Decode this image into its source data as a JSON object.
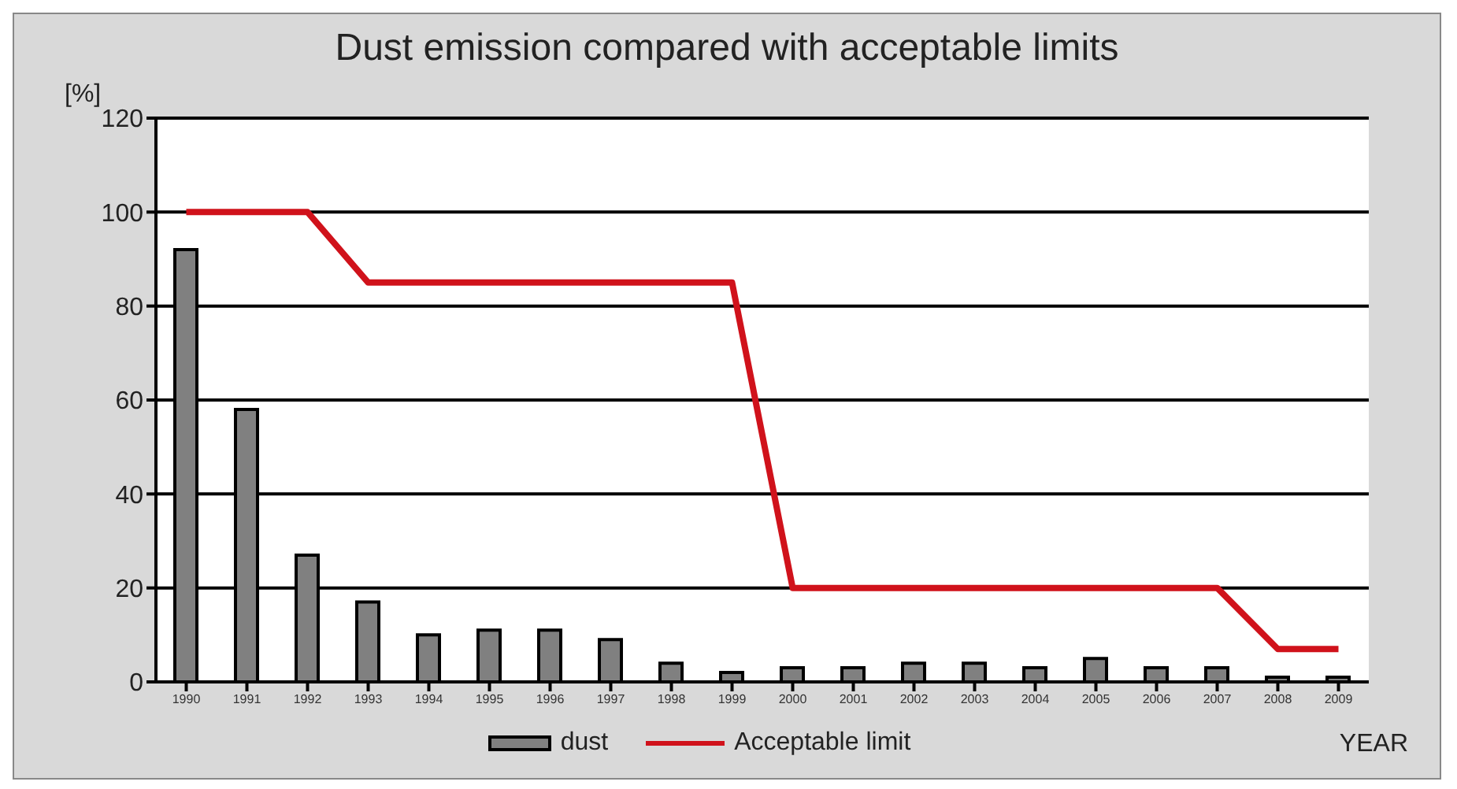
{
  "chart_data": {
    "type": "bar",
    "title": "Dust emission compared with acceptable limits",
    "xlabel": "YEAR",
    "ylabel": "[%]",
    "categories": [
      "1990",
      "1991",
      "1992",
      "1993",
      "1994",
      "1995",
      "1996",
      "1997",
      "1998",
      "1999",
      "2000",
      "2001",
      "2002",
      "2003",
      "2004",
      "2005",
      "2006",
      "2007",
      "2008",
      "2009"
    ],
    "series": [
      {
        "name": "dust",
        "color": "#808080",
        "values": [
          92,
          58,
          27,
          17,
          10,
          11,
          11,
          9,
          4,
          2,
          3,
          3,
          4,
          4,
          3,
          5,
          3,
          3,
          1,
          1
        ]
      },
      {
        "name": "Acceptable limit",
        "type": "line",
        "color": "#d0121b",
        "values": [
          100,
          100,
          100,
          85,
          85,
          85,
          85,
          85,
          85,
          85,
          20,
          20,
          20,
          20,
          20,
          20,
          20,
          20,
          7,
          7
        ]
      }
    ],
    "ylim": [
      0,
      120
    ],
    "yticks": [
      0,
      20,
      40,
      60,
      80,
      100,
      120
    ],
    "grid": "y",
    "legend": "bottom",
    "marker": "none",
    "line_style": "solid"
  }
}
